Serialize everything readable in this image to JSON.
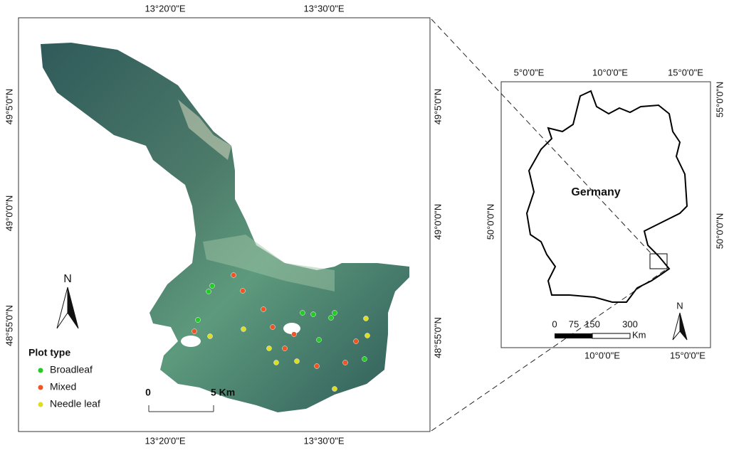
{
  "left_map": {
    "top_labels": [
      "13°20'0\"E",
      "13°30'0\"E"
    ],
    "bottom_labels": [
      "13°20'0\"E",
      "13°30'0\"E"
    ],
    "left_labels": [
      "49°5'0\"N",
      "49°0'0\"N",
      "48°55'0\"N"
    ],
    "right_labels": [
      "49°5'0\"N",
      "49°0'0\"N",
      "48°55'0\"N"
    ],
    "legend": {
      "title": "Plot type",
      "items": [
        {
          "label": "Broadleaf",
          "color": "#22cc22"
        },
        {
          "label": "Mixed",
          "color": "#ee5522"
        },
        {
          "label": "Needle leaf",
          "color": "#dddd22"
        }
      ]
    },
    "scale": {
      "start": "0",
      "end": "5 Km"
    },
    "north": "N"
  },
  "right_map": {
    "top_labels": [
      "5°0'0\"E",
      "10°0'0\"E",
      "15°0'0\"E"
    ],
    "bottom_labels": [
      "10°0'0\"E",
      "15°0'0\"E"
    ],
    "left_labels": [
      "50°0'0\"N"
    ],
    "right_labels": [
      "55°0'0\"N",
      "50°0'0\"N"
    ],
    "country": "Germany",
    "scale": [
      "0",
      "75",
      "150",
      "300",
      "Km"
    ],
    "north": "N"
  }
}
